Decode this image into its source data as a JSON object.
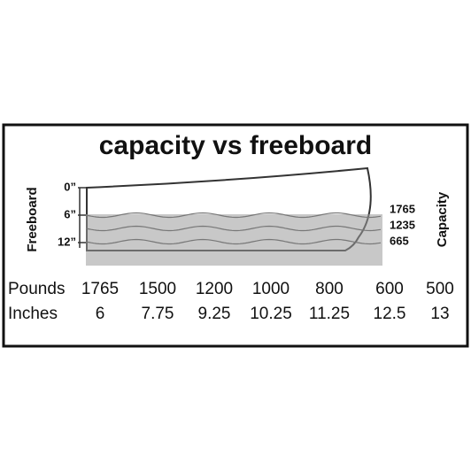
{
  "title": "capacity vs freeboard",
  "left_axis_label": "Freeboard",
  "right_axis_label": "Capacity",
  "freeboard_ticks": [
    "0”",
    "6”",
    "12”"
  ],
  "capacity_labels": [
    "1765",
    "1235",
    "665"
  ],
  "table": {
    "rows": [
      {
        "label": "Pounds",
        "values": [
          1765,
          1500,
          1200,
          1000,
          800,
          600,
          500
        ]
      },
      {
        "label": "Inches",
        "values": [
          6,
          7.75,
          9.25,
          10.25,
          11.25,
          12.5,
          13
        ]
      }
    ]
  }
}
